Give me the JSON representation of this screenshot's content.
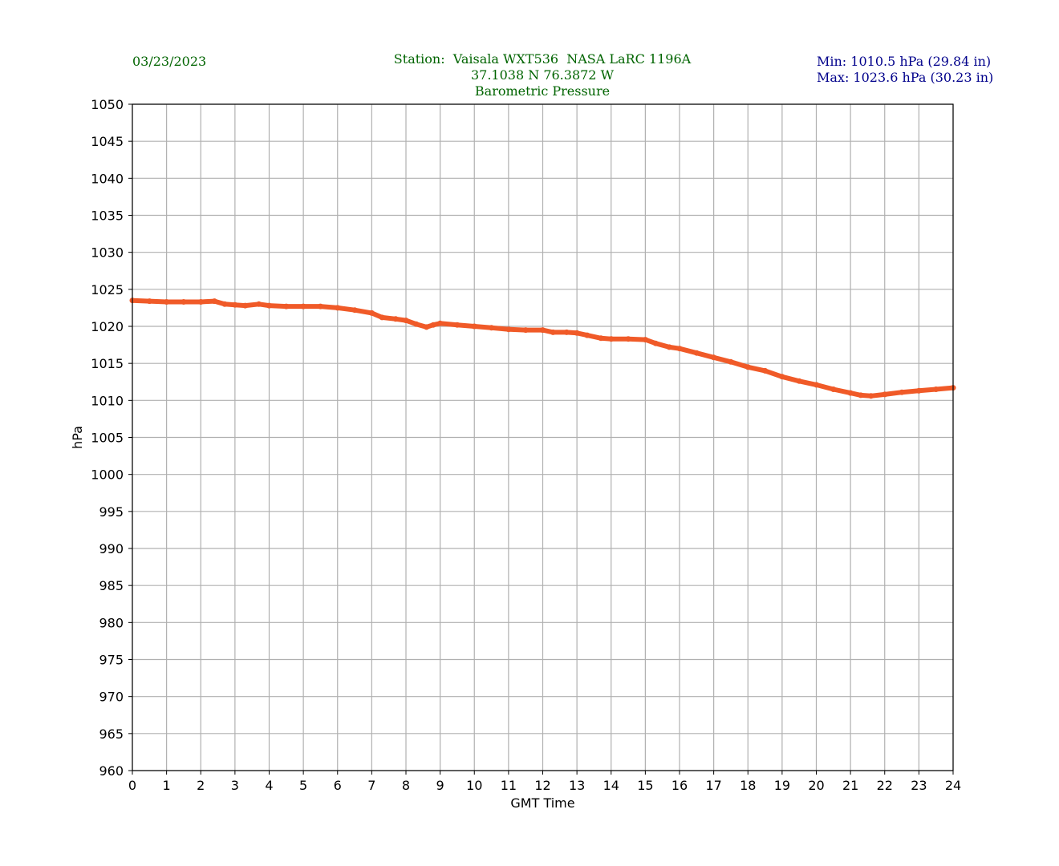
{
  "header": {
    "date": "03/23/2023",
    "station_line": "Station:  Vaisala WXT536  NASA LaRC 1196A",
    "coords_line": "37.1038 N 76.3872 W",
    "title": "Barometric Pressure",
    "min_text": "Min: 1010.5 hPa (29.84 in)",
    "max_text": "Max: 1023.6 hPa (30.23 in)"
  },
  "colors": {
    "series": "#f05a28",
    "grid": "#b0b0b0",
    "header_green": "#006400",
    "header_navy": "#00008b"
  },
  "chart_data": {
    "type": "line",
    "title": "Barometric Pressure",
    "xlabel": "GMT Time",
    "ylabel": "hPa",
    "xlim": [
      0,
      24
    ],
    "ylim": [
      960,
      1050
    ],
    "xticks": [
      0,
      1,
      2,
      3,
      4,
      5,
      6,
      7,
      8,
      9,
      10,
      11,
      12,
      13,
      14,
      15,
      16,
      17,
      18,
      19,
      20,
      21,
      22,
      23,
      24
    ],
    "yticks": [
      960,
      965,
      970,
      975,
      980,
      985,
      990,
      995,
      1000,
      1005,
      1010,
      1015,
      1020,
      1025,
      1030,
      1035,
      1040,
      1045,
      1050
    ],
    "grid": true,
    "series": [
      {
        "x": [
          0,
          0.5,
          1,
          1.5,
          2,
          2.4,
          2.7,
          3,
          3.3,
          3.7,
          4,
          4.5,
          5,
          5.5,
          6,
          6.5,
          7,
          7.3,
          7.7,
          8,
          8.3,
          8.6,
          8.8,
          9,
          9.5,
          10,
          10.5,
          11,
          11.5,
          12,
          12.3,
          12.7,
          13,
          13.3,
          13.7,
          14,
          14.5,
          15,
          15.3,
          15.7,
          16,
          16.5,
          17,
          17.5,
          18,
          18.5,
          19,
          19.5,
          20,
          20.5,
          21,
          21.3,
          21.6,
          22,
          22.5,
          23,
          23.5,
          24
        ],
        "y": [
          1023.5,
          1023.4,
          1023.3,
          1023.3,
          1023.3,
          1023.4,
          1023.0,
          1022.9,
          1022.8,
          1023.0,
          1022.8,
          1022.7,
          1022.7,
          1022.7,
          1022.5,
          1022.2,
          1021.8,
          1021.2,
          1021.0,
          1020.8,
          1020.3,
          1019.9,
          1020.2,
          1020.4,
          1020.2,
          1020.0,
          1019.8,
          1019.6,
          1019.5,
          1019.5,
          1019.2,
          1019.2,
          1019.1,
          1018.8,
          1018.4,
          1018.3,
          1018.3,
          1018.2,
          1017.7,
          1017.2,
          1017.0,
          1016.4,
          1015.8,
          1015.2,
          1014.5,
          1014.0,
          1013.2,
          1012.6,
          1012.1,
          1011.5,
          1011.0,
          1010.7,
          1010.6,
          1010.8,
          1011.1,
          1011.3,
          1011.5,
          1011.7
        ]
      }
    ]
  }
}
